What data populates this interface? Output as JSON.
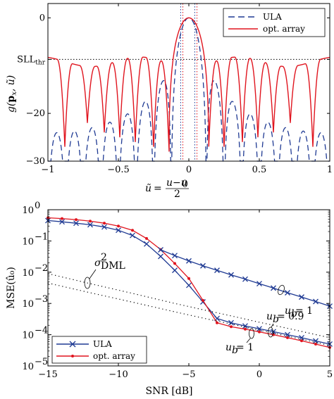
{
  "chart_data": [
    {
      "type": "line",
      "xlabel": "ũ = (u−u₀)/2",
      "ylabel": "g(pₓ, ũ)",
      "xlim": [
        -1,
        1
      ],
      "ylim": [
        -30,
        3
      ],
      "x_ticks": [
        "−1",
        "−0.5",
        "0",
        "0.5",
        "1"
      ],
      "y_ticks": [
        "0",
        "SLL_thr",
        "−20",
        "−30"
      ],
      "threshold": {
        "label": "SLL",
        "sub": "thr",
        "value": -8.7
      },
      "mainlobe_markers": [
        -0.05,
        0.05
      ],
      "legend_position": "top-right",
      "series": [
        {
          "name": "ULA",
          "color": "#1f3a93",
          "style": "dashed"
        },
        {
          "name": "opt. array",
          "color": "#e0141e",
          "style": "solid"
        }
      ]
    },
    {
      "type": "line",
      "xlabel": "SNR [dB]",
      "ylabel": "MSE(û₀)",
      "yscale": "log",
      "xlim": [
        -15,
        5
      ],
      "ylim": [
        1e-05,
        1
      ],
      "x_ticks": [
        "−15",
        "−10",
        "−5",
        "0",
        "5"
      ],
      "y_ticks": [
        {
          "base": "10",
          "exp": "0"
        },
        {
          "base": "10",
          "exp": "−1"
        },
        {
          "base": "10",
          "exp": "−2"
        },
        {
          "base": "10",
          "exp": "−3"
        },
        {
          "base": "10",
          "exp": "−4"
        },
        {
          "base": "10",
          "exp": "−5"
        }
      ],
      "legend_position": "bottom-left",
      "series": [
        {
          "name": "ULA",
          "color": "#1f3a93",
          "marker": "x",
          "x": [
            -15,
            -14,
            -13,
            -12,
            -11,
            -10,
            -9,
            -8,
            -7,
            -6,
            -5,
            -4,
            -3,
            -2,
            -1,
            0,
            1,
            2,
            3,
            4,
            5
          ],
          "y": [
            0.45,
            0.41,
            0.37,
            0.33,
            0.28,
            0.22,
            0.15,
            0.08,
            0.032,
            0.0115,
            0.0038,
            0.00112,
            0.00033,
            0.00024,
            0.00019,
            0.000155,
            0.000125,
            0.0001,
            8e-05,
            6.3e-05,
            5e-05
          ]
        },
        {
          "name": "opt. array",
          "color": "#e0141e",
          "marker": "dot",
          "x": [
            -15,
            -14,
            -13,
            -12,
            -11,
            -10,
            -9,
            -8,
            -7,
            -6,
            -5,
            -4,
            -3,
            -2,
            -1,
            0,
            1,
            2,
            3,
            4,
            5
          ],
          "y": [
            0.55,
            0.52,
            0.48,
            0.43,
            0.37,
            0.3,
            0.22,
            0.12,
            0.053,
            0.019,
            0.0063,
            0.00125,
            0.00024,
            0.00018,
            0.00015,
            0.000123,
            0.0001,
            8e-05,
            6.4e-05,
            5e-05,
            3.9e-05
          ]
        },
        {
          "name": "",
          "color": "#1f3a93",
          "marker": "x",
          "x": [
            -7,
            -6,
            -5,
            -4,
            -3,
            -2,
            -1,
            0,
            1,
            2,
            3,
            4,
            5
          ],
          "y": [
            0.052,
            0.034,
            0.023,
            0.016,
            0.0115,
            0.0082,
            0.006,
            0.0043,
            0.0031,
            0.0022,
            0.0016,
            0.00115,
            0.00082
          ]
        },
        {
          "name": "",
          "color": "#000000",
          "style": "dotted",
          "x": [
            -15,
            -12,
            -9,
            -6,
            -4,
            -2,
            0,
            2,
            5
          ],
          "y": [
            0.009,
            0.0043,
            0.0021,
            0.001,
            0.00063,
            0.0004,
            0.00025,
            0.00016,
            8e-05
          ]
        },
        {
          "name": "",
          "color": "#000000",
          "style": "dotted",
          "x": [
            -15,
            -12,
            -9,
            -6,
            -4,
            -2,
            0,
            2,
            5
          ],
          "y": [
            0.0045,
            0.0022,
            0.0011,
            0.00054,
            0.00034,
            0.00022,
            0.00014,
            9e-05,
            4.5e-05
          ]
        }
      ],
      "annotations": [
        {
          "text": "σ²_DML",
          "main": "σ",
          "sup": "2",
          "sub": "DML"
        },
        {
          "text": "u_b = 1 (upper)",
          "main": "u",
          "sub": "b",
          "rest": " = 1"
        },
        {
          "text": "u_b = 0.9",
          "main": "u",
          "sub": "b",
          "rest": " = 0.9"
        },
        {
          "text": "u_b = 1 (lower)",
          "main": "u",
          "sub": "b",
          "rest": " = 1"
        }
      ]
    }
  ]
}
